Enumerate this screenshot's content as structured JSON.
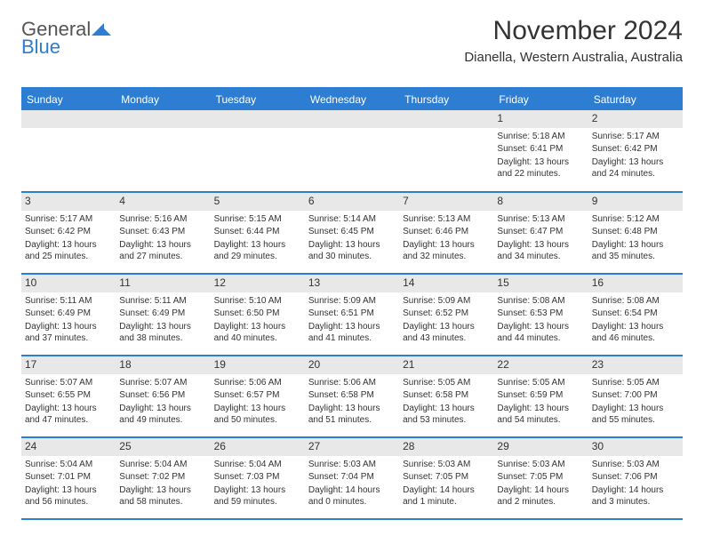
{
  "logo": {
    "line1": "General",
    "line2": "Blue"
  },
  "title": "November 2024",
  "subtitle": "Dianella, Western Australia, Australia",
  "colors": {
    "header_bg": "#2d7dd2",
    "header_text": "#ffffff",
    "daynum_bg": "#e8e8e8",
    "border": "#2d7dd2",
    "text": "#333333",
    "background": "#ffffff"
  },
  "fonts": {
    "title_size": 30,
    "subtitle_size": 15,
    "header_size": 12,
    "daynum_size": 12,
    "cell_size": 10
  },
  "day_headers": [
    "Sunday",
    "Monday",
    "Tuesday",
    "Wednesday",
    "Thursday",
    "Friday",
    "Saturday"
  ],
  "weeks": [
    [
      {
        "n": "",
        "sr": "",
        "ss": "",
        "dl": ""
      },
      {
        "n": "",
        "sr": "",
        "ss": "",
        "dl": ""
      },
      {
        "n": "",
        "sr": "",
        "ss": "",
        "dl": ""
      },
      {
        "n": "",
        "sr": "",
        "ss": "",
        "dl": ""
      },
      {
        "n": "",
        "sr": "",
        "ss": "",
        "dl": ""
      },
      {
        "n": "1",
        "sr": "Sunrise: 5:18 AM",
        "ss": "Sunset: 6:41 PM",
        "dl": "Daylight: 13 hours and 22 minutes."
      },
      {
        "n": "2",
        "sr": "Sunrise: 5:17 AM",
        "ss": "Sunset: 6:42 PM",
        "dl": "Daylight: 13 hours and 24 minutes."
      }
    ],
    [
      {
        "n": "3",
        "sr": "Sunrise: 5:17 AM",
        "ss": "Sunset: 6:42 PM",
        "dl": "Daylight: 13 hours and 25 minutes."
      },
      {
        "n": "4",
        "sr": "Sunrise: 5:16 AM",
        "ss": "Sunset: 6:43 PM",
        "dl": "Daylight: 13 hours and 27 minutes."
      },
      {
        "n": "5",
        "sr": "Sunrise: 5:15 AM",
        "ss": "Sunset: 6:44 PM",
        "dl": "Daylight: 13 hours and 29 minutes."
      },
      {
        "n": "6",
        "sr": "Sunrise: 5:14 AM",
        "ss": "Sunset: 6:45 PM",
        "dl": "Daylight: 13 hours and 30 minutes."
      },
      {
        "n": "7",
        "sr": "Sunrise: 5:13 AM",
        "ss": "Sunset: 6:46 PM",
        "dl": "Daylight: 13 hours and 32 minutes."
      },
      {
        "n": "8",
        "sr": "Sunrise: 5:13 AM",
        "ss": "Sunset: 6:47 PM",
        "dl": "Daylight: 13 hours and 34 minutes."
      },
      {
        "n": "9",
        "sr": "Sunrise: 5:12 AM",
        "ss": "Sunset: 6:48 PM",
        "dl": "Daylight: 13 hours and 35 minutes."
      }
    ],
    [
      {
        "n": "10",
        "sr": "Sunrise: 5:11 AM",
        "ss": "Sunset: 6:49 PM",
        "dl": "Daylight: 13 hours and 37 minutes."
      },
      {
        "n": "11",
        "sr": "Sunrise: 5:11 AM",
        "ss": "Sunset: 6:49 PM",
        "dl": "Daylight: 13 hours and 38 minutes."
      },
      {
        "n": "12",
        "sr": "Sunrise: 5:10 AM",
        "ss": "Sunset: 6:50 PM",
        "dl": "Daylight: 13 hours and 40 minutes."
      },
      {
        "n": "13",
        "sr": "Sunrise: 5:09 AM",
        "ss": "Sunset: 6:51 PM",
        "dl": "Daylight: 13 hours and 41 minutes."
      },
      {
        "n": "14",
        "sr": "Sunrise: 5:09 AM",
        "ss": "Sunset: 6:52 PM",
        "dl": "Daylight: 13 hours and 43 minutes."
      },
      {
        "n": "15",
        "sr": "Sunrise: 5:08 AM",
        "ss": "Sunset: 6:53 PM",
        "dl": "Daylight: 13 hours and 44 minutes."
      },
      {
        "n": "16",
        "sr": "Sunrise: 5:08 AM",
        "ss": "Sunset: 6:54 PM",
        "dl": "Daylight: 13 hours and 46 minutes."
      }
    ],
    [
      {
        "n": "17",
        "sr": "Sunrise: 5:07 AM",
        "ss": "Sunset: 6:55 PM",
        "dl": "Daylight: 13 hours and 47 minutes."
      },
      {
        "n": "18",
        "sr": "Sunrise: 5:07 AM",
        "ss": "Sunset: 6:56 PM",
        "dl": "Daylight: 13 hours and 49 minutes."
      },
      {
        "n": "19",
        "sr": "Sunrise: 5:06 AM",
        "ss": "Sunset: 6:57 PM",
        "dl": "Daylight: 13 hours and 50 minutes."
      },
      {
        "n": "20",
        "sr": "Sunrise: 5:06 AM",
        "ss": "Sunset: 6:58 PM",
        "dl": "Daylight: 13 hours and 51 minutes."
      },
      {
        "n": "21",
        "sr": "Sunrise: 5:05 AM",
        "ss": "Sunset: 6:58 PM",
        "dl": "Daylight: 13 hours and 53 minutes."
      },
      {
        "n": "22",
        "sr": "Sunrise: 5:05 AM",
        "ss": "Sunset: 6:59 PM",
        "dl": "Daylight: 13 hours and 54 minutes."
      },
      {
        "n": "23",
        "sr": "Sunrise: 5:05 AM",
        "ss": "Sunset: 7:00 PM",
        "dl": "Daylight: 13 hours and 55 minutes."
      }
    ],
    [
      {
        "n": "24",
        "sr": "Sunrise: 5:04 AM",
        "ss": "Sunset: 7:01 PM",
        "dl": "Daylight: 13 hours and 56 minutes."
      },
      {
        "n": "25",
        "sr": "Sunrise: 5:04 AM",
        "ss": "Sunset: 7:02 PM",
        "dl": "Daylight: 13 hours and 58 minutes."
      },
      {
        "n": "26",
        "sr": "Sunrise: 5:04 AM",
        "ss": "Sunset: 7:03 PM",
        "dl": "Daylight: 13 hours and 59 minutes."
      },
      {
        "n": "27",
        "sr": "Sunrise: 5:03 AM",
        "ss": "Sunset: 7:04 PM",
        "dl": "Daylight: 14 hours and 0 minutes."
      },
      {
        "n": "28",
        "sr": "Sunrise: 5:03 AM",
        "ss": "Sunset: 7:05 PM",
        "dl": "Daylight: 14 hours and 1 minute."
      },
      {
        "n": "29",
        "sr": "Sunrise: 5:03 AM",
        "ss": "Sunset: 7:05 PM",
        "dl": "Daylight: 14 hours and 2 minutes."
      },
      {
        "n": "30",
        "sr": "Sunrise: 5:03 AM",
        "ss": "Sunset: 7:06 PM",
        "dl": "Daylight: 14 hours and 3 minutes."
      }
    ]
  ]
}
